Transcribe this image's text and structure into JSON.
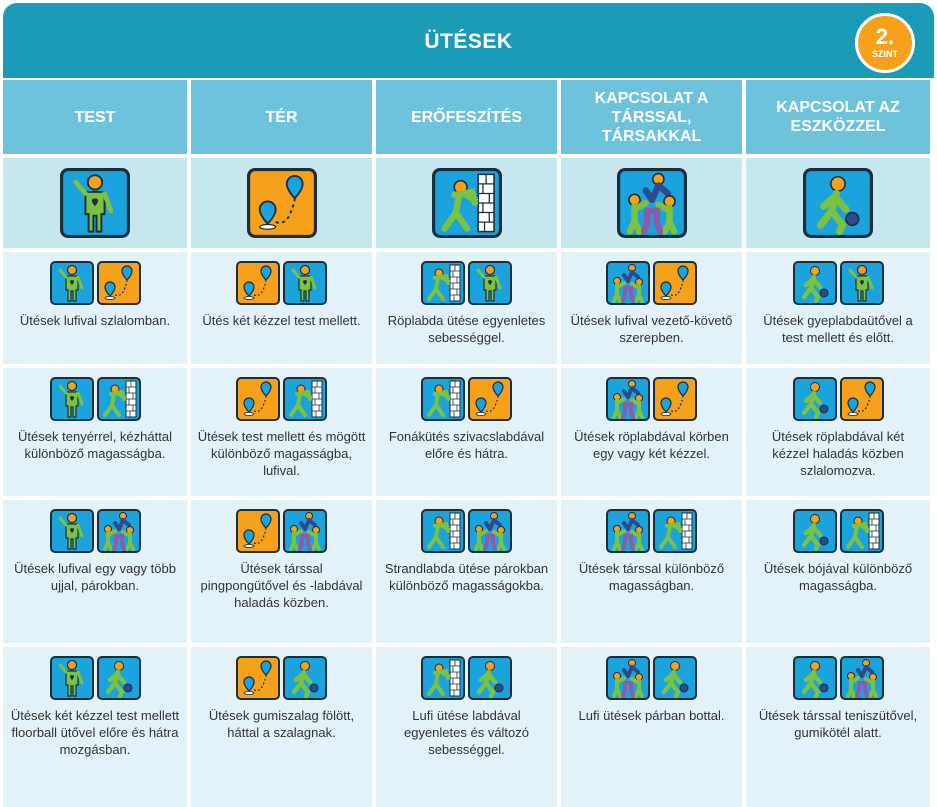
{
  "header": {
    "title": "ÜTÉSEK",
    "level_number": "2.",
    "level_label": "SZINT"
  },
  "columns": [
    {
      "label": "TEST",
      "icon": "body-icon"
    },
    {
      "label": "TÉR",
      "icon": "space-icon"
    },
    {
      "label": "ERŐFESZÍTÉS",
      "icon": "effort-icon"
    },
    {
      "label": "KAPCSOLAT A TÁRSSAL, TÁRSAKKAL",
      "icon": "partner-icon"
    },
    {
      "label": "KAPCSOLAT AZ ESZKÖZZEL",
      "icon": "equipment-icon"
    }
  ],
  "rows": [
    [
      {
        "text": "Ütések lufival szlalomban.",
        "icons": [
          "body-icon",
          "space-icon"
        ]
      },
      {
        "text": "Ütés két kézzel test mellett.",
        "icons": [
          "space-icon",
          "body-icon"
        ]
      },
      {
        "text": "Röplabda ütése egyenletes sebességgel.",
        "icons": [
          "effort-icon",
          "body-icon"
        ]
      },
      {
        "text": "Ütések lufival vezető-követő szerepben.",
        "icons": [
          "partner-icon",
          "space-icon"
        ]
      },
      {
        "text": "Ütések gyeplabdaütővel a test mellett és előtt.",
        "icons": [
          "equipment-icon",
          "body-icon"
        ]
      }
    ],
    [
      {
        "text": "Ütések tenyérrel, kézháttal különböző magasságba.",
        "icons": [
          "body-icon",
          "effort-icon"
        ]
      },
      {
        "text": "Ütések test mellett és mögött különböző magasságba, lufival.",
        "icons": [
          "space-icon",
          "effort-icon"
        ]
      },
      {
        "text": "Fonákütés szivacslabdával előre és hátra.",
        "icons": [
          "effort-icon",
          "space-icon"
        ]
      },
      {
        "text": "Ütések röplabdával körben egy vagy két kézzel.",
        "icons": [
          "partner-icon",
          "space-icon"
        ]
      },
      {
        "text": "Ütések röplabdával két kézzel haladás közben szlalomozva.",
        "icons": [
          "equipment-icon",
          "space-icon"
        ]
      }
    ],
    [
      {
        "text": "Ütések lufival egy vagy több ujjal, párokban.",
        "icons": [
          "body-icon",
          "partner-icon"
        ]
      },
      {
        "text": "Ütések társsal pingpongütővel és -labdával haladás közben.",
        "icons": [
          "space-icon",
          "partner-icon"
        ]
      },
      {
        "text": "Strandlabda ütése párokban különböző magasságokba.",
        "icons": [
          "effort-icon",
          "partner-icon"
        ]
      },
      {
        "text": "Ütések társsal különböző magasságban.",
        "icons": [
          "partner-icon",
          "effort-icon"
        ]
      },
      {
        "text": "Ütések bójával különböző magasságba.",
        "icons": [
          "equipment-icon",
          "effort-icon"
        ]
      }
    ],
    [
      {
        "text": "Ütések két kézzel test mellett floorball ütővel előre és hátra mozgásban.",
        "icons": [
          "body-icon",
          "equipment-icon"
        ]
      },
      {
        "text": "Ütések gumiszalag fölött, háttal a szalagnak.",
        "icons": [
          "space-icon",
          "equipment-icon"
        ]
      },
      {
        "text": "Lufi ütése labdával egyenletes és változó sebességgel.",
        "icons": [
          "effort-icon",
          "equipment-icon"
        ]
      },
      {
        "text": "Lufi ütések párban bottal.",
        "icons": [
          "partner-icon",
          "equipment-icon"
        ]
      },
      {
        "text": "Ütések társsal teniszütővel, gumikötél alatt.",
        "icons": [
          "equipment-icon",
          "partner-icon"
        ]
      }
    ]
  ],
  "colors": {
    "header": "#1a9cb6",
    "column_header": "#6cc3db",
    "icon_row": "#c6e6f0",
    "cell": "#e3f2f8",
    "badge": "#f5a11c",
    "icon_blue": "#1aa3dc",
    "icon_orange": "#f5a11c",
    "figure_green": "#7cc242"
  }
}
